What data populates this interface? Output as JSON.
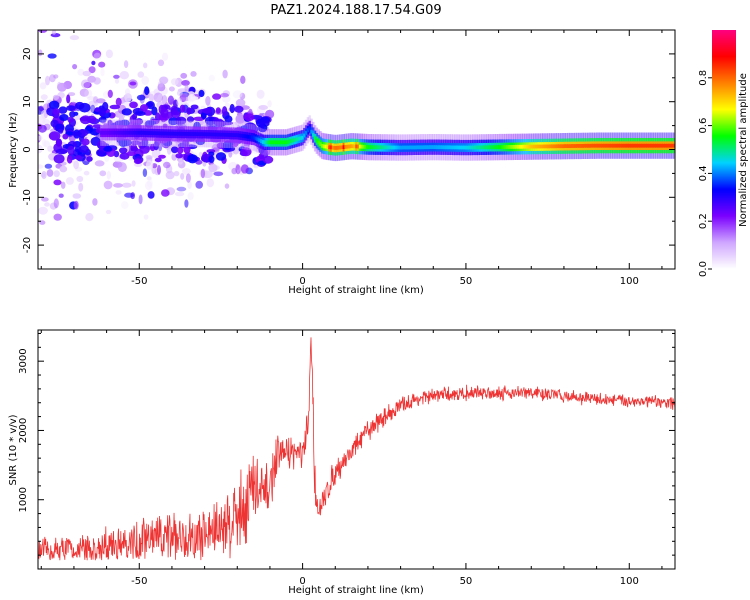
{
  "title": "PAZ1.2024.188.17.54.G09",
  "chart_data": [
    {
      "type": "heatmap",
      "title": "PAZ1.2024.188.17.54.G09",
      "xlabel": "Height of straight line (km)",
      "ylabel": "Frequency (Hz)",
      "xlim": [
        -81,
        114
      ],
      "ylim": [
        -25,
        25
      ],
      "xticks": [
        -50,
        0,
        50,
        100
      ],
      "yticks": [
        -20,
        -10,
        0,
        10,
        20
      ],
      "ridge": {
        "x": [
          -60,
          -50,
          -40,
          -30,
          -20,
          -15,
          -12,
          -10,
          -5,
          0,
          2,
          4,
          6,
          10,
          15,
          20,
          30,
          40,
          50,
          60,
          70,
          80,
          90,
          100,
          110,
          114
        ],
        "frequency": [
          3.5,
          3.5,
          3.3,
          3.2,
          3.0,
          2.5,
          1.5,
          1.5,
          1.5,
          2.5,
          4.5,
          2.0,
          0.7,
          0.3,
          0.7,
          0.5,
          0.4,
          0.5,
          0.4,
          0.5,
          0.6,
          0.7,
          0.8,
          0.8,
          0.8,
          0.8
        ],
        "amplitude": [
          0.25,
          0.3,
          0.3,
          0.3,
          0.3,
          0.35,
          0.45,
          0.55,
          0.55,
          0.45,
          0.35,
          0.55,
          0.62,
          0.8,
          0.75,
          0.55,
          0.42,
          0.42,
          0.45,
          0.55,
          0.72,
          0.8,
          0.82,
          0.84,
          0.84,
          0.84
        ]
      },
      "scatter_region": {
        "x": [
          -81,
          -10
        ],
        "frequency": [
          -25,
          25
        ],
        "amplitude": [
          0.02,
          0.3
        ]
      },
      "colorbar": {
        "label": "Normalized spectral amplitude",
        "range": [
          0,
          1
        ],
        "ticks": [
          0.0,
          0.2,
          0.4,
          0.6,
          0.8
        ],
        "tick_labels": [
          "0.0",
          "0.2",
          "0.4",
          "0.6",
          "0.8"
        ],
        "colors": [
          "#ffffff",
          "#cfa6ff",
          "#7a00ff",
          "#0000ff",
          "#00d2ff",
          "#00ff00",
          "#ffff00",
          "#ff8000",
          "#ff0000",
          "#ff0080"
        ]
      }
    },
    {
      "type": "line",
      "xlabel": "Height of straight line (km)",
      "ylabel": "SNR (10 * v/v)",
      "xlim": [
        -81,
        114
      ],
      "ylim": [
        0,
        3450
      ],
      "xticks": [
        -50,
        0,
        50,
        100
      ],
      "yticks": [
        1000,
        2000,
        3000
      ],
      "color": "#ee3333",
      "envelope": {
        "x": [
          -81,
          -70,
          -60,
          -50,
          -40,
          -30,
          -25,
          -20,
          -17,
          -15,
          -12,
          -10,
          -8,
          -5,
          0,
          1,
          2,
          2.5,
          3,
          3.5,
          4,
          5,
          6,
          8,
          10,
          15,
          20,
          25,
          30,
          35,
          40,
          45,
          50,
          55,
          60,
          70,
          80,
          90,
          100,
          110,
          114
        ],
        "mean": [
          250,
          300,
          350,
          400,
          450,
          500,
          600,
          800,
          1000,
          1200,
          1000,
          1200,
          1600,
          1700,
          1650,
          1800,
          2200,
          3400,
          2800,
          1600,
          1100,
          800,
          900,
          1200,
          1400,
          1700,
          2000,
          2200,
          2350,
          2450,
          2500,
          2520,
          2540,
          2540,
          2550,
          2540,
          2500,
          2450,
          2430,
          2400,
          2400
        ],
        "spread": [
          150,
          180,
          220,
          280,
          300,
          350,
          400,
          500,
          550,
          550,
          400,
          300,
          250,
          200,
          180,
          250,
          300,
          50,
          400,
          300,
          200,
          150,
          200,
          180,
          150,
          140,
          130,
          120,
          110,
          100,
          90,
          90,
          90,
          90,
          90,
          90,
          80,
          80,
          80,
          80,
          80
        ]
      }
    }
  ]
}
